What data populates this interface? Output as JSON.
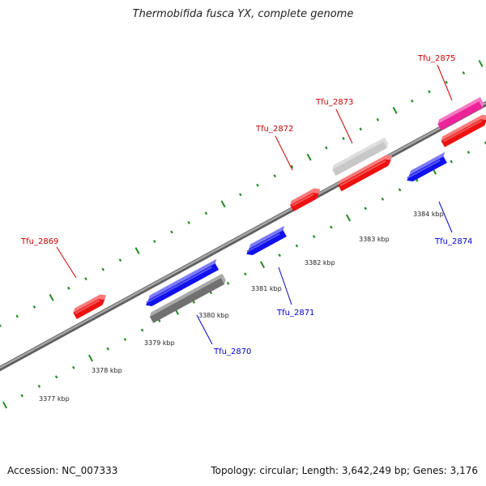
{
  "title": "Thermobifida fusca YX, complete genome",
  "footer": {
    "accession": "Accession: NC_007333",
    "summary": "Topology: circular; Length: 3,642,249 bp; Genes: 3,176"
  },
  "colors": {
    "backbone": "#808080",
    "tick": "#228b22",
    "forward_label": "#cc0000",
    "reverse_label": "#0000cc"
  },
  "scale": {
    "unit": "kbp",
    "ticks": [
      {
        "kbp": 3377,
        "label": "3377 kbp"
      },
      {
        "kbp": 3378,
        "label": "3378 kbp"
      },
      {
        "kbp": 3379,
        "label": "3379 kbp"
      },
      {
        "kbp": 3380,
        "label": "3380 kbp"
      },
      {
        "kbp": 3381,
        "label": "3381 kbp"
      },
      {
        "kbp": 3382,
        "label": "3382 kbp"
      },
      {
        "kbp": 3383,
        "label": "3383 kbp"
      },
      {
        "kbp": 3384,
        "label": "3384 kbp"
      }
    ]
  },
  "genes": [
    {
      "name": "Tfu_2869",
      "strand": "+",
      "type": "cds",
      "color": "#ee1111"
    },
    {
      "name": "Tfu_2870",
      "strand": "-",
      "type": "cds",
      "color": "#1111ee"
    },
    {
      "name": "Tfu_2871",
      "strand": "-",
      "type": "cds",
      "color": "#1111ee"
    },
    {
      "name": "Tfu_2872",
      "strand": "+",
      "type": "cds",
      "color": "#ee1111"
    },
    {
      "name": "Tfu_2873",
      "strand": "+",
      "type": "cds",
      "color": "#ee1111"
    },
    {
      "name": "Tfu_2874",
      "strand": "-",
      "type": "cds",
      "color": "#1111ee"
    },
    {
      "name": "Tfu_2875",
      "strand": "+",
      "type": "cds",
      "color": "#ee1111"
    }
  ],
  "extra_features": [
    {
      "type": "gene",
      "color": "#707070"
    },
    {
      "type": "gene",
      "color": "#c8c8c8"
    },
    {
      "type": "gene",
      "color": "#ee2299"
    }
  ]
}
